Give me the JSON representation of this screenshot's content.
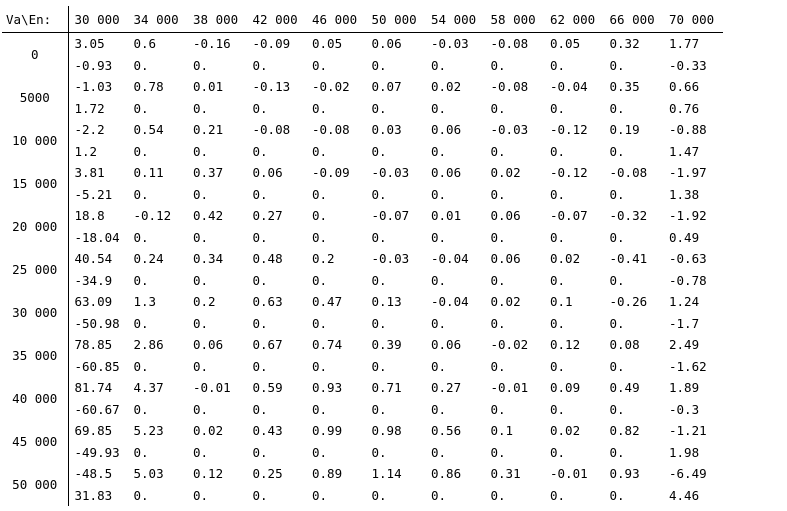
{
  "table": {
    "header": [
      "Va\\En:",
      "30 000",
      "34 000",
      "38 000",
      "42 000",
      "46 000",
      "50 000",
      "54 000",
      "58 000",
      "62 000",
      "66 000",
      "70 000"
    ],
    "rows": [
      {
        "label": "0",
        "top": [
          "3.05",
          "0.6",
          "-0.16",
          "-0.09",
          "0.05",
          "0.06",
          "-0.03",
          "-0.08",
          "0.05",
          "0.32",
          "1.77"
        ],
        "bottom": [
          "-0.93",
          "0.",
          "0.",
          "0.",
          "0.",
          "0.",
          "0.",
          "0.",
          "0.",
          "0.",
          "-0.33"
        ]
      },
      {
        "label": "5000",
        "top": [
          "-1.03",
          "0.78",
          "0.01",
          "-0.13",
          "-0.02",
          "0.07",
          "0.02",
          "-0.08",
          "-0.04",
          "0.35",
          "0.66"
        ],
        "bottom": [
          "1.72",
          "0.",
          "0.",
          "0.",
          "0.",
          "0.",
          "0.",
          "0.",
          "0.",
          "0.",
          "0.76"
        ]
      },
      {
        "label": "10 000",
        "top": [
          "-2.2",
          "0.54",
          "0.21",
          "-0.08",
          "-0.08",
          "0.03",
          "0.06",
          "-0.03",
          "-0.12",
          "0.19",
          "-0.88"
        ],
        "bottom": [
          "1.2",
          "0.",
          "0.",
          "0.",
          "0.",
          "0.",
          "0.",
          "0.",
          "0.",
          "0.",
          "1.47"
        ]
      },
      {
        "label": "15 000",
        "top": [
          "3.81",
          "0.11",
          "0.37",
          "0.06",
          "-0.09",
          "-0.03",
          "0.06",
          "0.02",
          "-0.12",
          "-0.08",
          "-1.97"
        ],
        "bottom": [
          "-5.21",
          "0.",
          "0.",
          "0.",
          "0.",
          "0.",
          "0.",
          "0.",
          "0.",
          "0.",
          "1.38"
        ]
      },
      {
        "label": "20 000",
        "top": [
          "18.8",
          "-0.12",
          "0.42",
          "0.27",
          "0.",
          "-0.07",
          "0.01",
          "0.06",
          "-0.07",
          "-0.32",
          "-1.92"
        ],
        "bottom": [
          "-18.04",
          "0.",
          "0.",
          "0.",
          "0.",
          "0.",
          "0.",
          "0.",
          "0.",
          "0.",
          "0.49"
        ]
      },
      {
        "label": "25 000",
        "top": [
          "40.54",
          "0.24",
          "0.34",
          "0.48",
          "0.2",
          "-0.03",
          "-0.04",
          "0.06",
          "0.02",
          "-0.41",
          "-0.63"
        ],
        "bottom": [
          "-34.9",
          "0.",
          "0.",
          "0.",
          "0.",
          "0.",
          "0.",
          "0.",
          "0.",
          "0.",
          "-0.78"
        ]
      },
      {
        "label": "30 000",
        "top": [
          "63.09",
          "1.3",
          "0.2",
          "0.63",
          "0.47",
          "0.13",
          "-0.04",
          "0.02",
          "0.1",
          "-0.26",
          "1.24"
        ],
        "bottom": [
          "-50.98",
          "0.",
          "0.",
          "0.",
          "0.",
          "0.",
          "0.",
          "0.",
          "0.",
          "0.",
          "-1.7"
        ]
      },
      {
        "label": "35 000",
        "top": [
          "78.85",
          "2.86",
          "0.06",
          "0.67",
          "0.74",
          "0.39",
          "0.06",
          "-0.02",
          "0.12",
          "0.08",
          "2.49"
        ],
        "bottom": [
          "-60.85",
          "0.",
          "0.",
          "0.",
          "0.",
          "0.",
          "0.",
          "0.",
          "0.",
          "0.",
          "-1.62"
        ]
      },
      {
        "label": "40 000",
        "top": [
          "81.74",
          "4.37",
          "-0.01",
          "0.59",
          "0.93",
          "0.71",
          "0.27",
          "-0.01",
          "0.09",
          "0.49",
          "1.89"
        ],
        "bottom": [
          "-60.67",
          "0.",
          "0.",
          "0.",
          "0.",
          "0.",
          "0.",
          "0.",
          "0.",
          "0.",
          "-0.3"
        ]
      },
      {
        "label": "45 000",
        "top": [
          "69.85",
          "5.23",
          "0.02",
          "0.43",
          "0.99",
          "0.98",
          "0.56",
          "0.1",
          "0.02",
          "0.82",
          "-1.21"
        ],
        "bottom": [
          "-49.93",
          "0.",
          "0.",
          "0.",
          "0.",
          "0.",
          "0.",
          "0.",
          "0.",
          "0.",
          "1.98"
        ]
      },
      {
        "label": "50 000",
        "top": [
          "-48.5",
          "5.03",
          "0.12",
          "0.25",
          "0.89",
          "1.14",
          "0.86",
          "0.31",
          "-0.01",
          "0.93",
          "-6.49"
        ],
        "bottom": [
          "31.83",
          "0.",
          "0.",
          "0.",
          "0.",
          "0.",
          "0.",
          "0.",
          "0.",
          "0.",
          "4.46"
        ]
      }
    ]
  }
}
